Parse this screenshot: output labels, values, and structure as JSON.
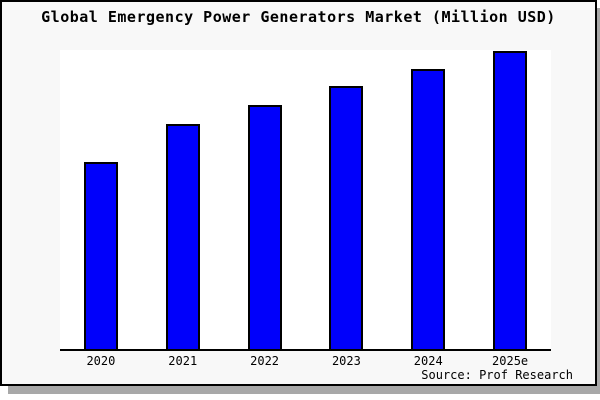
{
  "title": "Global Emergency Power Generators Market (Million USD)",
  "source_note": "Source: Prof Research",
  "colors": {
    "bar_fill": "#0000fb",
    "bar_border": "#000000",
    "frame_background": "#f8f8f8",
    "plot_background": "#ffffff",
    "frame_border": "#000000",
    "axis_line": "#000000",
    "drop_shadow": "#a8a8a8",
    "text": "#000000"
  },
  "chart_data": {
    "type": "bar",
    "title": "Global Emergency Power Generators Market (Million USD)",
    "categories": [
      "2020",
      "2021",
      "2022",
      "2023",
      "2024",
      "2025e"
    ],
    "values": [
      62.7,
      75.2,
      81.5,
      87.8,
      93.8,
      99.7
    ],
    "values_note": "y-axis is unlabeled in the chart; values are bar heights estimated as percent of plot height (2025e bar nearly fills the plot)",
    "xlabel": "",
    "ylabel": "",
    "ylim": [
      0,
      100
    ],
    "grid": false,
    "legend": "none",
    "annotations": [
      "Source: Prof Research"
    ]
  }
}
